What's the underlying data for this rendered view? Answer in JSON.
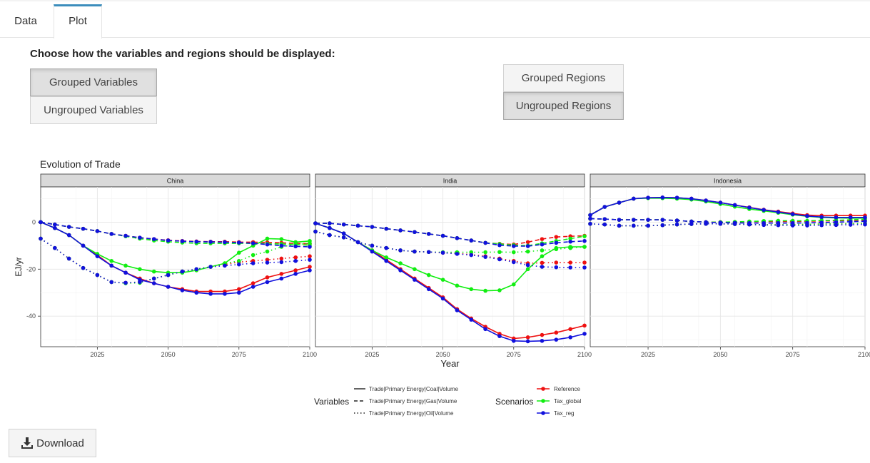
{
  "tabs": [
    {
      "label": "Data",
      "active": false
    },
    {
      "label": "Plot",
      "active": true
    }
  ],
  "prompt": "Choose how the variables and regions should be displayed:",
  "variable_buttons": [
    {
      "label": "Grouped Variables",
      "selected": true
    },
    {
      "label": "Ungrouped Variables",
      "selected": false
    }
  ],
  "region_buttons": [
    {
      "label": "Grouped Regions",
      "selected": false
    },
    {
      "label": "Ungrouped Regions",
      "selected": true
    }
  ],
  "download_label": "Download",
  "download_icon": "download-icon",
  "chart_data": {
    "type": "line",
    "title": "Evolution of Trade",
    "xlabel": "Year",
    "ylabel": "EJ/yr",
    "xlim": [
      2005,
      2100
    ],
    "ylim": [
      -53,
      15
    ],
    "xticks": [
      2025,
      2050,
      2075,
      2100
    ],
    "yticks": [
      0,
      -20,
      -40
    ],
    "grid": true,
    "facets": [
      "China",
      "India",
      "Indonesia"
    ],
    "legend_variables_title": "Variables",
    "legend_scenarios_title": "Scenarios",
    "variables": [
      {
        "name": "Trade|Primary Energy|Coal|Volume",
        "dash": "solid"
      },
      {
        "name": "Trade|Primary Energy|Gas|Volume",
        "dash": "dashed"
      },
      {
        "name": "Trade|Primary Energy|Oil|Volume",
        "dash": "dotted"
      }
    ],
    "scenarios": [
      {
        "name": "Reference",
        "color": "#ee1111"
      },
      {
        "name": "Tax_global",
        "color": "#11ee11"
      },
      {
        "name": "Tax_reg",
        "color": "#1111dd"
      }
    ],
    "x": [
      2005,
      2010,
      2015,
      2020,
      2025,
      2030,
      2035,
      2040,
      2045,
      2050,
      2055,
      2060,
      2065,
      2070,
      2075,
      2080,
      2085,
      2090,
      2095,
      2100
    ],
    "series": [
      {
        "facet": "China",
        "variable": "Trade|Primary Energy|Coal|Volume",
        "scenario": "Reference",
        "values": [
          0,
          -2.5,
          -5.5,
          -10,
          -14,
          -18.5,
          -21.5,
          -24,
          -26,
          -27.5,
          -28.5,
          -29.5,
          -29.5,
          -29.5,
          -28.5,
          -26,
          -23.5,
          -22,
          -20.5,
          -19
        ]
      },
      {
        "facet": "China",
        "variable": "Trade|Primary Energy|Coal|Volume",
        "scenario": "Tax_global",
        "values": [
          0,
          -2.5,
          -5.5,
          -10,
          -13.5,
          -16.5,
          -18.5,
          -20,
          -21,
          -21.5,
          -21.5,
          -20.5,
          -19,
          -17.5,
          -13,
          -10,
          -7,
          -7.2,
          -8.5,
          -8
        ]
      },
      {
        "facet": "China",
        "variable": "Trade|Primary Energy|Coal|Volume",
        "scenario": "Tax_reg",
        "values": [
          0,
          -2.5,
          -5.5,
          -10,
          -14.5,
          -18.5,
          -21.5,
          -24.5,
          -26,
          -27.5,
          -29,
          -30,
          -30.5,
          -30.5,
          -30,
          -27.5,
          -25.5,
          -24,
          -22,
          -20.5
        ]
      },
      {
        "facet": "China",
        "variable": "Trade|Primary Energy|Gas|Volume",
        "scenario": "Reference",
        "values": [
          0,
          -1,
          -2,
          -2.8,
          -3.8,
          -5,
          -5.8,
          -6.6,
          -7.2,
          -7.7,
          -8,
          -8.2,
          -8.3,
          -8.3,
          -8.5,
          -8.5,
          -8.6,
          -8.8,
          -9,
          -9.2
        ]
      },
      {
        "facet": "China",
        "variable": "Trade|Primary Energy|Gas|Volume",
        "scenario": "Tax_global",
        "values": [
          0,
          -1,
          -2,
          -2.8,
          -3.8,
          -5,
          -6,
          -7,
          -7.8,
          -8.3,
          -8.7,
          -9,
          -9,
          -9,
          -9,
          -9,
          -9.2,
          -9.3,
          -9.5,
          -9.8
        ]
      },
      {
        "facet": "China",
        "variable": "Trade|Primary Energy|Gas|Volume",
        "scenario": "Tax_reg",
        "values": [
          0,
          -1,
          -2,
          -2.8,
          -3.8,
          -5,
          -5.8,
          -6.6,
          -7.2,
          -7.8,
          -8.1,
          -8.3,
          -8.4,
          -8.5,
          -8.7,
          -9,
          -9.5,
          -10,
          -10.3,
          -10.5
        ]
      },
      {
        "facet": "China",
        "variable": "Trade|Primary Energy|Oil|Volume",
        "scenario": "Reference",
        "values": [
          -7,
          -11,
          -15.5,
          -19.5,
          -22.5,
          -25.5,
          -25.8,
          -25.5,
          -24,
          -22.5,
          -21,
          -20,
          -19,
          -18,
          -17,
          -16.5,
          -16,
          -15.5,
          -15,
          -14.5
        ]
      },
      {
        "facet": "China",
        "variable": "Trade|Primary Energy|Oil|Volume",
        "scenario": "Tax_global",
        "values": [
          -7,
          -11,
          -15.5,
          -19.5,
          -22.5,
          -25.5,
          -26,
          -25.8,
          -24,
          -22.5,
          -21,
          -20,
          -19,
          -17.5,
          -16.5,
          -14,
          -12.5,
          -10.5,
          -9.5,
          -9
        ]
      },
      {
        "facet": "China",
        "variable": "Trade|Primary Energy|Oil|Volume",
        "scenario": "Tax_reg",
        "values": [
          -7,
          -11,
          -15.5,
          -19.5,
          -22.5,
          -25.5,
          -25.8,
          -25.5,
          -24,
          -22.5,
          -21,
          -20,
          -19,
          -18.5,
          -18,
          -17.5,
          -17.2,
          -17,
          -16.5,
          -16
        ]
      },
      {
        "facet": "India",
        "variable": "Trade|Primary Energy|Coal|Volume",
        "scenario": "Reference",
        "values": [
          -0.5,
          -2.5,
          -4.8,
          -8.5,
          -12,
          -16,
          -20,
          -24,
          -28,
          -32,
          -37,
          -41,
          -44.5,
          -47.5,
          -49.5,
          -49,
          -48,
          -47,
          -45.5,
          -44
        ]
      },
      {
        "facet": "India",
        "variable": "Trade|Primary Energy|Coal|Volume",
        "scenario": "Tax_global",
        "values": [
          -0.5,
          -2.5,
          -4.8,
          -8.5,
          -12,
          -15,
          -17.5,
          -20,
          -22.5,
          -24.5,
          -27,
          -28.5,
          -29.2,
          -29,
          -26.5,
          -20,
          -14.5,
          -11,
          -10.5,
          -10.5
        ]
      },
      {
        "facet": "India",
        "variable": "Trade|Primary Energy|Coal|Volume",
        "scenario": "Tax_reg",
        "values": [
          -0.5,
          -2.5,
          -4.8,
          -8.5,
          -12.5,
          -16.5,
          -20.5,
          -24.5,
          -28.5,
          -32.5,
          -37.5,
          -41.5,
          -45.5,
          -48.5,
          -50.5,
          -50.7,
          -50.5,
          -50,
          -49,
          -47.5
        ]
      },
      {
        "facet": "India",
        "variable": "Trade|Primary Energy|Gas|Volume",
        "scenario": "Reference",
        "values": [
          -0.5,
          -0.5,
          -1,
          -1.5,
          -2,
          -2.8,
          -3.5,
          -4.2,
          -5,
          -5.8,
          -6.8,
          -7.8,
          -8.8,
          -9.2,
          -9.5,
          -8.5,
          -7.2,
          -6.3,
          -6,
          -5.8
        ]
      },
      {
        "facet": "India",
        "variable": "Trade|Primary Energy|Gas|Volume",
        "scenario": "Tax_global",
        "values": [
          -0.5,
          -0.5,
          -1,
          -1.5,
          -2,
          -2.8,
          -3.5,
          -4.2,
          -5,
          -5.8,
          -6.8,
          -7.8,
          -8.8,
          -9.3,
          -9.8,
          -10,
          -9,
          -8,
          -7,
          -6
        ]
      },
      {
        "facet": "India",
        "variable": "Trade|Primary Energy|Gas|Volume",
        "scenario": "Tax_reg",
        "values": [
          -0.5,
          -0.5,
          -1,
          -1.5,
          -2,
          -2.8,
          -3.5,
          -4.2,
          -5,
          -5.8,
          -6.8,
          -7.8,
          -8.8,
          -9.8,
          -10.2,
          -10.2,
          -9.5,
          -8.8,
          -8.3,
          -8
        ]
      },
      {
        "facet": "India",
        "variable": "Trade|Primary Energy|Oil|Volume",
        "scenario": "Reference",
        "values": [
          -4,
          -5.5,
          -6.5,
          -8.5,
          -10,
          -11,
          -12,
          -12.5,
          -12.7,
          -13,
          -13.3,
          -13.8,
          -14.5,
          -15.5,
          -16.5,
          -17.5,
          -17.3,
          -17.2,
          -17.2,
          -17.2
        ]
      },
      {
        "facet": "India",
        "variable": "Trade|Primary Energy|Oil|Volume",
        "scenario": "Tax_global",
        "values": [
          -4,
          -5.5,
          -6.5,
          -8.5,
          -10,
          -11,
          -12,
          -12.5,
          -12.7,
          -12.8,
          -12.8,
          -12.8,
          -12.8,
          -12.7,
          -12.8,
          -12.5,
          -12,
          -11.5,
          -11,
          -10.5
        ]
      },
      {
        "facet": "India",
        "variable": "Trade|Primary Energy|Oil|Volume",
        "scenario": "Tax_reg",
        "values": [
          -4,
          -5.5,
          -6.5,
          -8.5,
          -10,
          -11,
          -12,
          -12.5,
          -12.7,
          -13,
          -13.5,
          -14,
          -14.8,
          -15.8,
          -17,
          -18.3,
          -19,
          -19.2,
          -19.3,
          -19.3
        ]
      },
      {
        "facet": "Indonesia",
        "variable": "Trade|Primary Energy|Coal|Volume",
        "scenario": "Reference",
        "values": [
          3,
          6.5,
          8.3,
          10,
          10.4,
          10.5,
          10.4,
          10,
          9.2,
          8.3,
          7.3,
          6.3,
          5.3,
          4.5,
          3.7,
          3,
          2.8,
          2.8,
          2.8,
          2.8
        ]
      },
      {
        "facet": "Indonesia",
        "variable": "Trade|Primary Energy|Coal|Volume",
        "scenario": "Tax_global",
        "values": [
          3,
          6.5,
          8.3,
          10,
          10.2,
          10.2,
          10,
          9.6,
          8.8,
          7.7,
          6.6,
          5.6,
          4.8,
          4,
          3.2,
          2.5,
          2,
          1.8,
          1.7,
          1.7
        ]
      },
      {
        "facet": "Indonesia",
        "variable": "Trade|Primary Energy|Coal|Volume",
        "scenario": "Tax_reg",
        "values": [
          3,
          6.5,
          8.3,
          10,
          10.4,
          10.5,
          10.4,
          10,
          9.2,
          8.3,
          7.3,
          6.2,
          5.2,
          4.3,
          3.4,
          2.6,
          2.2,
          2,
          2,
          2
        ]
      },
      {
        "facet": "Indonesia",
        "variable": "Trade|Primary Energy|Gas|Volume",
        "scenario": "Reference",
        "values": [
          1.5,
          1.3,
          1,
          1,
          1,
          1,
          0.7,
          0.3,
          0,
          0,
          0,
          0.2,
          0.3,
          0.3,
          0.3,
          0.4,
          0.5,
          0.6,
          0.7,
          0.8
        ]
      },
      {
        "facet": "Indonesia",
        "variable": "Trade|Primary Energy|Gas|Volume",
        "scenario": "Tax_global",
        "values": [
          1.5,
          1.3,
          1,
          1,
          1,
          1,
          0.7,
          0.3,
          0,
          0,
          0.1,
          0.3,
          0.5,
          0.6,
          0.6,
          0.6,
          0.7,
          0.8,
          1,
          1.2
        ]
      },
      {
        "facet": "Indonesia",
        "variable": "Trade|Primary Energy|Gas|Volume",
        "scenario": "Tax_reg",
        "values": [
          1.5,
          1.3,
          1,
          1,
          1,
          1,
          0.7,
          0.3,
          0,
          -0.2,
          -0.3,
          -0.4,
          -0.4,
          -0.4,
          -0.4,
          -0.3,
          -0.2,
          0,
          0.2,
          0.4
        ]
      },
      {
        "facet": "Indonesia",
        "variable": "Trade|Primary Energy|Oil|Volume",
        "scenario": "Reference",
        "values": [
          -0.7,
          -1,
          -1.5,
          -1.5,
          -1.5,
          -1.3,
          -1,
          -0.8,
          -0.7,
          -0.7,
          -0.8,
          -1,
          -1.1,
          -1.1,
          -1,
          -0.9,
          -0.8,
          -0.7,
          -0.6,
          -0.5
        ]
      },
      {
        "facet": "Indonesia",
        "variable": "Trade|Primary Energy|Oil|Volume",
        "scenario": "Tax_global",
        "values": [
          -0.7,
          -1,
          -1.5,
          -1.5,
          -1.5,
          -1.3,
          -1,
          -0.8,
          -0.7,
          -0.7,
          -0.8,
          -1,
          -1.1,
          -1.1,
          -1,
          -0.9,
          -0.8,
          -0.7,
          -0.6,
          -0.5
        ]
      },
      {
        "facet": "Indonesia",
        "variable": "Trade|Primary Energy|Oil|Volume",
        "scenario": "Tax_reg",
        "values": [
          -0.7,
          -1,
          -1.5,
          -1.5,
          -1.5,
          -1.3,
          -1,
          -0.8,
          -0.7,
          -0.7,
          -0.8,
          -1,
          -1.2,
          -1.3,
          -1.4,
          -1.4,
          -1.3,
          -1.2,
          -1.1,
          -1
        ]
      }
    ]
  }
}
